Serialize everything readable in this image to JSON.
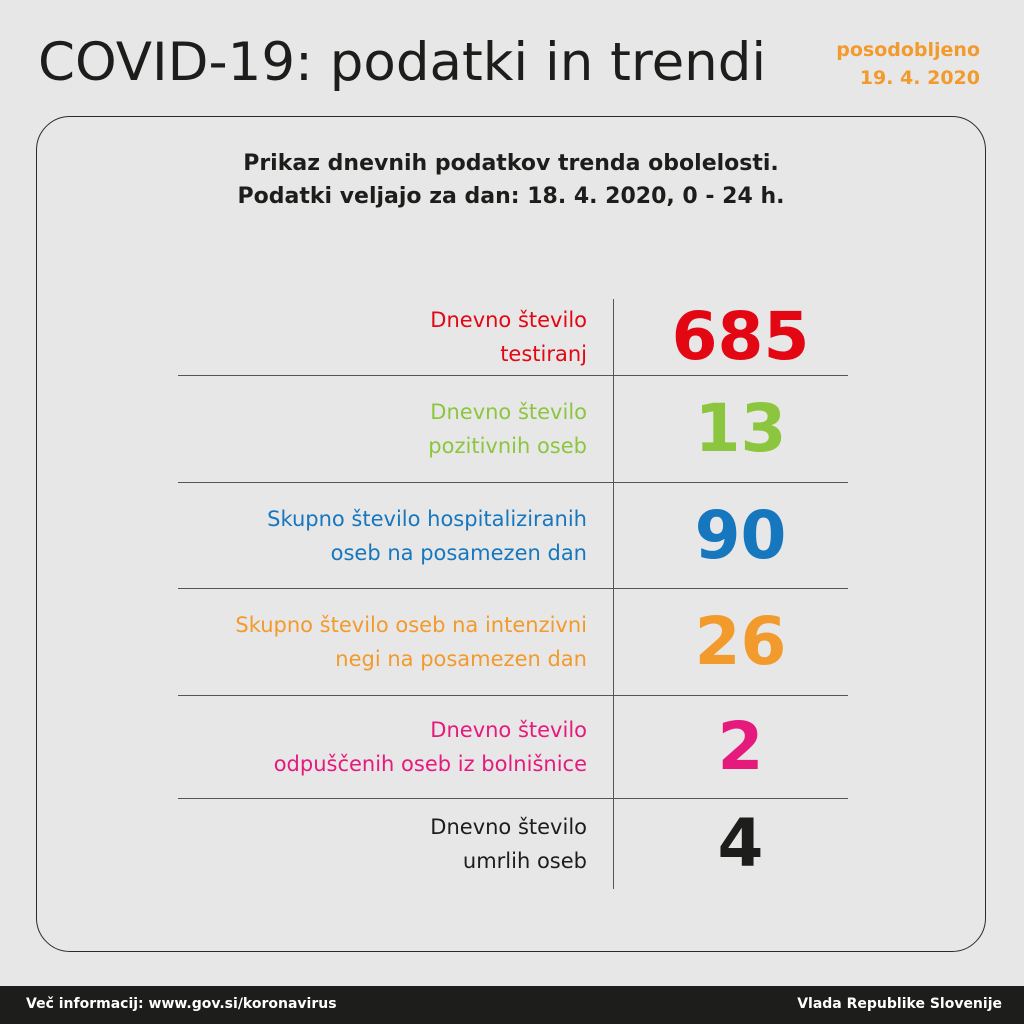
{
  "header": {
    "title": "COVID-19: podatki in trendi",
    "updated_line1": "posodobljeno",
    "updated_line2": "19. 4. 2020",
    "updated_color": "#f39a2c"
  },
  "card": {
    "subtitle_line1": "Prikaz dnevnih podatkov trenda obolelosti.",
    "subtitle_line2": "Podatki veljajo za dan: 18. 4. 2020, 0 - 24 h."
  },
  "stats": [
    {
      "label_line1": "Dnevno število",
      "label_line2": "testiranj",
      "value": "685",
      "color": "#e30613"
    },
    {
      "label_line1": "Dnevno število",
      "label_line2": "pozitivnih oseb",
      "value": "13",
      "color": "#8cc63e"
    },
    {
      "label_line1": "Skupno število hospitaliziranih",
      "label_line2": "oseb na posamezen dan",
      "value": "90",
      "color": "#1677bf"
    },
    {
      "label_line1": "Skupno število oseb na intenzivni",
      "label_line2": "negi na posamezen dan",
      "value": "26",
      "color": "#f39a2c"
    },
    {
      "label_line1": "Dnevno število",
      "label_line2": "odpuščenih oseb iz bolnišnice",
      "value": "2",
      "color": "#e6197d"
    },
    {
      "label_line1": "Dnevno število",
      "label_line2": "umrlih oseb",
      "value": "4",
      "color": "#1d1d1b"
    }
  ],
  "footer": {
    "more_info": "Več informacij: www.gov.si/koronavirus",
    "publisher": "Vlada Republike Slovenije"
  }
}
